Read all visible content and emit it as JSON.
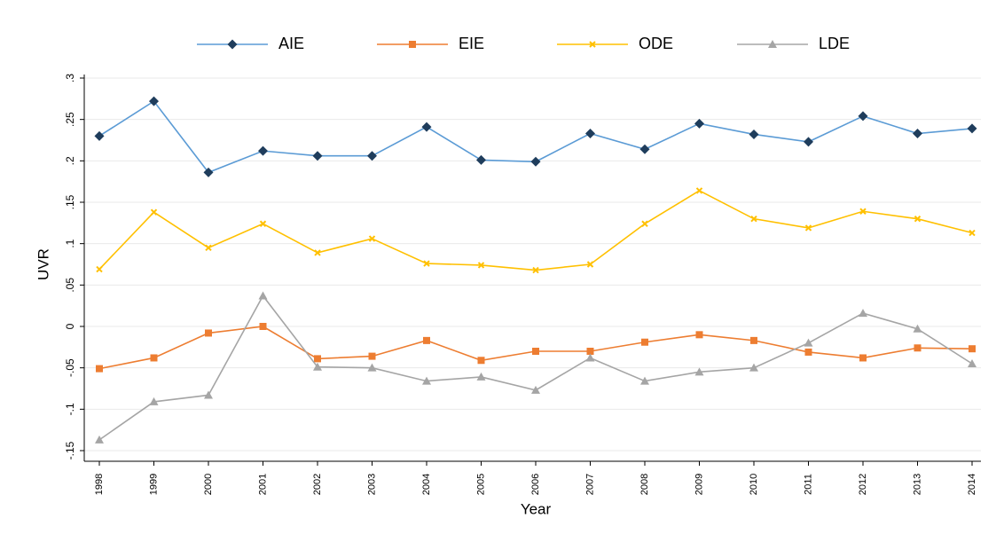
{
  "chart_data": {
    "type": "line",
    "x_label": "Year",
    "y_label": "UVR",
    "categories": [
      "1998",
      "1999",
      "2000",
      "2001",
      "2002",
      "2003",
      "2004",
      "2005",
      "2006",
      "2007",
      "2008",
      "2009",
      "2010",
      "2011",
      "2012",
      "2013",
      "2014"
    ],
    "series": [
      {
        "name": "AIE",
        "color": "#5b9bd5",
        "values": [
          0.23,
          0.272,
          0.186,
          0.212,
          0.206,
          0.206,
          0.241,
          0.201,
          0.199,
          0.233,
          0.214,
          0.245,
          0.232,
          0.223,
          0.254,
          0.233,
          0.239
        ]
      },
      {
        "name": "EIE",
        "color": "#ed7d31",
        "values": [
          -0.051,
          -0.038,
          -0.008,
          0,
          -0.039,
          -0.036,
          -0.017,
          -0.041,
          -0.03,
          -0.03,
          -0.019,
          -0.01,
          -0.017,
          -0.031,
          -0.038,
          -0.026,
          -0.027
        ]
      },
      {
        "name": "ODE",
        "color": "#ffc000",
        "values": [
          0.069,
          0.138,
          0.095,
          0.124,
          0.089,
          0.106,
          0.076,
          0.074,
          0.068,
          0.075,
          0.124,
          0.164,
          0.13,
          0.119,
          0.139,
          0.13,
          0.113
        ]
      },
      {
        "name": "LDE",
        "color": "#a5a5a5",
        "values": [
          -0.137,
          -0.091,
          -0.083,
          0.037,
          -0.049,
          -0.05,
          -0.066,
          -0.061,
          -0.077,
          -0.038,
          -0.066,
          -0.055,
          -0.05,
          -0.02,
          0.016,
          -0.003,
          -0.045
        ]
      }
    ],
    "ylim": [
      -0.15,
      0.3
    ],
    "yticks": [
      {
        "value": -0.15,
        "label": "-.15"
      },
      {
        "value": -0.1,
        "label": "-.1"
      },
      {
        "value": -0.05,
        "label": "-.05"
      },
      0,
      {
        "value": 0.05,
        "label": ".05"
      },
      {
        "value": 0.1,
        "label": ".1"
      },
      {
        "value": 0.15,
        "label": ".15"
      },
      {
        "value": 0.2,
        "label": ".2"
      },
      {
        "value": 0.25,
        "label": ".25"
      },
      {
        "value": 0.3,
        "label": ".3"
      }
    ],
    "grid": true,
    "legend": "top"
  }
}
